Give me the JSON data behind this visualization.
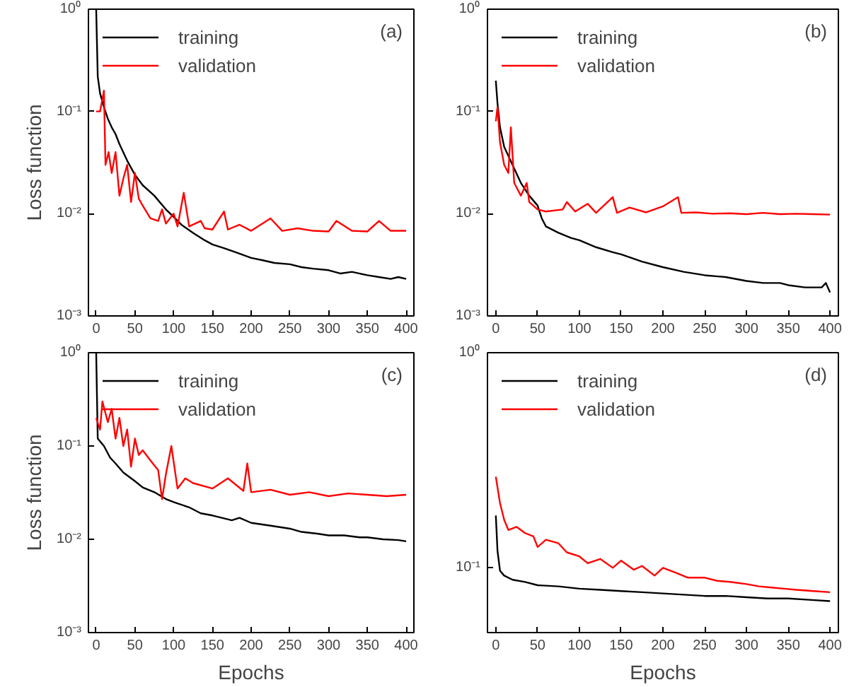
{
  "chart_data": [
    {
      "type": "line",
      "annotations": [
        "(a)"
      ],
      "ylabel": "Loss function",
      "log": "y",
      "legend": "top left",
      "grid": false,
      "xlim": [
        -10,
        410
      ],
      "ylim": [
        0.001,
        1
      ],
      "xticks": [
        0,
        50,
        100,
        150,
        200,
        250,
        300,
        350,
        400
      ],
      "yticks": [
        {
          "value": 0.001,
          "label": "10⁻³"
        },
        {
          "value": 0.01,
          "label": "10⁻²"
        },
        {
          "value": 0.1,
          "label": "10⁻¹"
        },
        {
          "value": 1,
          "label": "10⁰"
        }
      ],
      "series": [
        {
          "name": "training",
          "color": "#000000",
          "x": [
            0,
            2,
            5,
            10,
            15,
            20,
            25,
            30,
            40,
            50,
            60,
            75,
            90,
            100,
            110,
            125,
            140,
            150,
            165,
            180,
            200,
            215,
            230,
            250,
            265,
            280,
            300,
            315,
            330,
            350,
            365,
            380,
            390,
            400
          ],
          "values": [
            1,
            0.22,
            0.15,
            0.11,
            0.085,
            0.07,
            0.06,
            0.048,
            0.033,
            0.024,
            0.019,
            0.015,
            0.011,
            0.0093,
            0.0078,
            0.0065,
            0.0055,
            0.005,
            0.0046,
            0.0042,
            0.0037,
            0.0035,
            0.0033,
            0.0032,
            0.003,
            0.0029,
            0.0028,
            0.0026,
            0.0027,
            0.0025,
            0.0024,
            0.0023,
            0.0024,
            0.0023
          ]
        },
        {
          "name": "validation",
          "color": "#ff0000",
          "x": [
            0,
            5,
            10,
            12,
            16,
            20,
            25,
            30,
            35,
            40,
            45,
            50,
            55,
            60,
            70,
            80,
            85,
            90,
            100,
            105,
            113,
            120,
            135,
            140,
            150,
            165,
            170,
            185,
            200,
            225,
            240,
            260,
            280,
            300,
            310,
            330,
            350,
            365,
            380,
            400
          ],
          "values": [
            0.1,
            0.1,
            0.16,
            0.03,
            0.04,
            0.025,
            0.04,
            0.015,
            0.022,
            0.03,
            0.013,
            0.025,
            0.014,
            0.012,
            0.009,
            0.0085,
            0.011,
            0.008,
            0.01,
            0.0075,
            0.016,
            0.0075,
            0.0085,
            0.0072,
            0.007,
            0.0105,
            0.007,
            0.0078,
            0.0068,
            0.009,
            0.0068,
            0.0072,
            0.0068,
            0.0067,
            0.0085,
            0.0068,
            0.0067,
            0.0085,
            0.0068,
            0.0068
          ]
        }
      ]
    },
    {
      "type": "line",
      "annotations": [
        "(b)"
      ],
      "log": "y",
      "legend": "top left",
      "grid": false,
      "xlim": [
        -10,
        410
      ],
      "ylim": [
        0.001,
        1
      ],
      "xticks": [
        0,
        50,
        100,
        150,
        200,
        250,
        300,
        350,
        400
      ],
      "yticks": [
        {
          "value": 0.001,
          "label": "10⁻³"
        },
        {
          "value": 0.01,
          "label": "10⁻²"
        },
        {
          "value": 0.1,
          "label": "10⁻¹"
        },
        {
          "value": 1,
          "label": "10⁰"
        }
      ],
      "series": [
        {
          "name": "training",
          "color": "#000000",
          "x": [
            0,
            2,
            5,
            10,
            20,
            30,
            40,
            50,
            55,
            60,
            75,
            90,
            100,
            120,
            140,
            150,
            175,
            200,
            225,
            250,
            275,
            300,
            320,
            340,
            350,
            370,
            390,
            395,
            400
          ],
          "values": [
            0.2,
            0.12,
            0.07,
            0.045,
            0.03,
            0.02,
            0.015,
            0.012,
            0.009,
            0.0075,
            0.0065,
            0.0058,
            0.0055,
            0.0047,
            0.0042,
            0.004,
            0.0034,
            0.003,
            0.0027,
            0.0025,
            0.0024,
            0.0022,
            0.0021,
            0.0021,
            0.002,
            0.0019,
            0.0019,
            0.0021,
            0.0017
          ]
        },
        {
          "name": "validation",
          "color": "#ff0000",
          "x": [
            0,
            2,
            5,
            10,
            15,
            18,
            22,
            30,
            37,
            40,
            50,
            60,
            80,
            85,
            95,
            110,
            120,
            140,
            145,
            160,
            180,
            200,
            218,
            222,
            240,
            260,
            280,
            300,
            320,
            340,
            360,
            380,
            400
          ],
          "values": [
            0.08,
            0.11,
            0.05,
            0.03,
            0.025,
            0.07,
            0.02,
            0.015,
            0.02,
            0.013,
            0.011,
            0.0105,
            0.011,
            0.013,
            0.0105,
            0.0125,
            0.0102,
            0.0145,
            0.0102,
            0.0115,
            0.0103,
            0.0118,
            0.0145,
            0.0102,
            0.0103,
            0.01,
            0.0101,
            0.0099,
            0.0102,
            0.0099,
            0.01,
            0.0099,
            0.0098
          ]
        }
      ]
    },
    {
      "type": "line",
      "annotations": [
        "(c)"
      ],
      "xlabel": "Epochs",
      "ylabel": "Loss function",
      "log": "y",
      "legend": "top left",
      "grid": false,
      "xlim": [
        -10,
        410
      ],
      "ylim": [
        0.001,
        1
      ],
      "xticks": [
        0,
        50,
        100,
        150,
        200,
        250,
        300,
        350,
        400
      ],
      "yticks": [
        {
          "value": 0.001,
          "label": "10⁻³"
        },
        {
          "value": 0.01,
          "label": "10⁻²"
        },
        {
          "value": 0.1,
          "label": "10⁻¹"
        },
        {
          "value": 1,
          "label": "10⁰"
        }
      ],
      "series": [
        {
          "name": "training",
          "color": "#000000",
          "x": [
            0,
            2,
            10,
            18,
            25,
            35,
            50,
            60,
            75,
            90,
            100,
            120,
            135,
            150,
            175,
            185,
            200,
            225,
            250,
            265,
            285,
            300,
            320,
            340,
            350,
            370,
            390,
            400
          ],
          "values": [
            1,
            0.12,
            0.1,
            0.075,
            0.065,
            0.052,
            0.042,
            0.036,
            0.032,
            0.027,
            0.025,
            0.022,
            0.019,
            0.018,
            0.016,
            0.017,
            0.015,
            0.014,
            0.013,
            0.012,
            0.0115,
            0.011,
            0.011,
            0.0105,
            0.0105,
            0.01,
            0.0098,
            0.0095
          ]
        },
        {
          "name": "validation",
          "color": "#ff0000",
          "x": [
            0,
            5,
            8,
            15,
            20,
            25,
            30,
            35,
            40,
            45,
            50,
            55,
            60,
            70,
            80,
            85,
            90,
            97,
            105,
            115,
            125,
            150,
            170,
            190,
            195,
            200,
            225,
            250,
            275,
            300,
            325,
            350,
            375,
            400
          ],
          "values": [
            0.2,
            0.15,
            0.3,
            0.18,
            0.25,
            0.12,
            0.2,
            0.1,
            0.15,
            0.06,
            0.12,
            0.08,
            0.09,
            0.07,
            0.055,
            0.027,
            0.05,
            0.1,
            0.035,
            0.045,
            0.04,
            0.035,
            0.045,
            0.033,
            0.065,
            0.032,
            0.034,
            0.03,
            0.032,
            0.029,
            0.031,
            0.03,
            0.029,
            0.03
          ]
        }
      ]
    },
    {
      "type": "line",
      "annotations": [
        "(d)"
      ],
      "xlabel": "Epochs",
      "log": "y",
      "legend": "top left",
      "grid": false,
      "xlim": [
        -10,
        410
      ],
      "ylim": [
        0.05,
        1
      ],
      "xticks": [
        0,
        50,
        100,
        150,
        200,
        250,
        300,
        350,
        400
      ],
      "yticks": [
        {
          "value": 0.1,
          "label": "10⁻¹"
        },
        {
          "value": 1,
          "label": "10⁰"
        }
      ],
      "series": [
        {
          "name": "training",
          "color": "#000000",
          "x": [
            0,
            2,
            5,
            10,
            20,
            35,
            50,
            75,
            100,
            125,
            150,
            175,
            200,
            225,
            250,
            275,
            300,
            325,
            350,
            375,
            400
          ],
          "values": [
            0.175,
            0.12,
            0.097,
            0.092,
            0.088,
            0.086,
            0.083,
            0.082,
            0.08,
            0.079,
            0.078,
            0.077,
            0.076,
            0.075,
            0.074,
            0.074,
            0.073,
            0.072,
            0.072,
            0.071,
            0.07
          ]
        },
        {
          "name": "validation",
          "color": "#ff0000",
          "x": [
            0,
            5,
            10,
            15,
            25,
            35,
            45,
            50,
            60,
            75,
            85,
            100,
            110,
            125,
            140,
            150,
            165,
            175,
            190,
            200,
            215,
            230,
            250,
            265,
            280,
            300,
            315,
            330,
            345,
            360,
            380,
            400
          ],
          "values": [
            0.265,
            0.2,
            0.167,
            0.15,
            0.155,
            0.145,
            0.14,
            0.125,
            0.135,
            0.13,
            0.118,
            0.113,
            0.105,
            0.11,
            0.1,
            0.108,
            0.098,
            0.102,
            0.092,
            0.1,
            0.095,
            0.09,
            0.09,
            0.087,
            0.086,
            0.084,
            0.082,
            0.081,
            0.08,
            0.079,
            0.078,
            0.077
          ]
        }
      ]
    }
  ]
}
